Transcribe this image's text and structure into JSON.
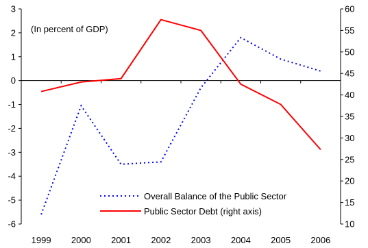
{
  "chart_data": {
    "type": "line",
    "annotation": "(In percent of GDP)",
    "categories": [
      "1999",
      "2000",
      "2001",
      "2002",
      "2003",
      "2004",
      "2005",
      "2006"
    ],
    "series": [
      {
        "name": "Overall Balance of the Public Sector",
        "axis": "left",
        "style": "dotted",
        "color": "#0000ff",
        "values": [
          -5.6,
          -1.05,
          -3.5,
          -3.4,
          -0.3,
          1.8,
          0.9,
          0.4
        ]
      },
      {
        "name": "Public Sector Debt (right axis)",
        "axis": "right",
        "style": "solid",
        "color": "#ff0000",
        "values": [
          40.8,
          43.0,
          43.8,
          57.5,
          55.0,
          42.5,
          37.8,
          27.3
        ]
      }
    ],
    "ylim_left": [
      -6,
      3
    ],
    "yticks_left": [
      "3",
      "2",
      "1",
      "0",
      "-1",
      "-2",
      "-3",
      "-4",
      "-5",
      "-6"
    ],
    "ylim_right": [
      10,
      60
    ],
    "yticks_right": [
      "60",
      "55",
      "50",
      "45",
      "40",
      "35",
      "30",
      "25",
      "20",
      "15",
      "10"
    ],
    "grid": false,
    "legend_position": "bottom-right"
  }
}
